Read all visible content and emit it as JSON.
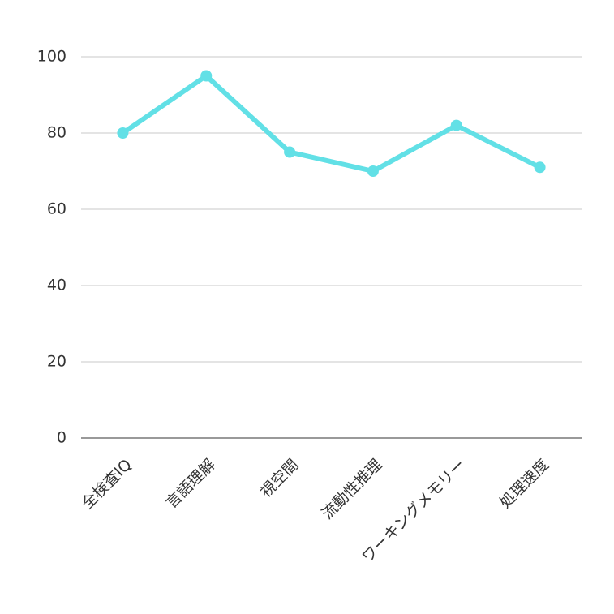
{
  "chart_data": {
    "type": "line",
    "categories": [
      "全検査IQ",
      "言語理解",
      "視空間",
      "流動性推理",
      "ワーキングメモリー",
      "処理速度"
    ],
    "values": [
      80,
      95,
      75,
      70,
      82,
      71
    ],
    "color": "#62e0e6",
    "ylim": [
      0,
      100
    ],
    "yticks": [
      0,
      20,
      40,
      60,
      80,
      100
    ],
    "grid": true
  }
}
